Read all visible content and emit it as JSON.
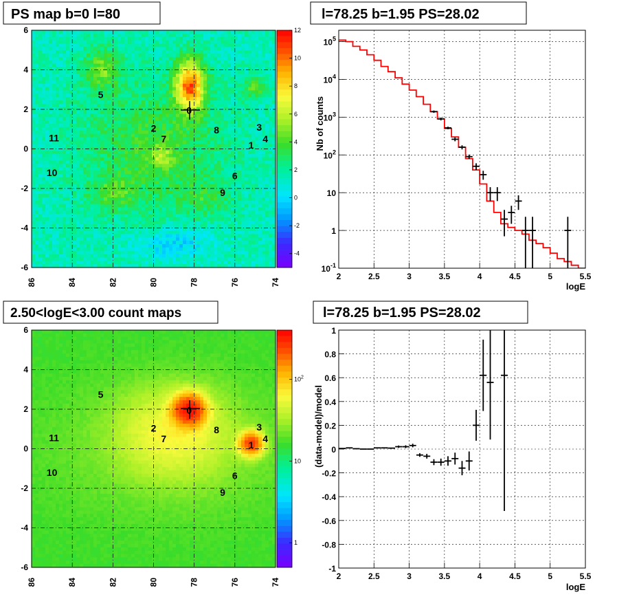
{
  "chart_data": [
    {
      "type": "heatmap",
      "title": "PS map b=0 l=80",
      "x_ticks": [
        "86",
        "84",
        "82",
        "80",
        "78",
        "76",
        "74"
      ],
      "y_ticks": [
        "6",
        "4",
        "2",
        "0",
        "-2",
        "-4",
        "-6"
      ],
      "xlim": [
        86,
        74
      ],
      "ylim": [
        -6,
        6
      ],
      "colorbar_ticks": [
        "12",
        "10",
        "8",
        "6",
        "4",
        "2",
        "0",
        "-2",
        "-4"
      ],
      "colorbar_range": [
        -5,
        12
      ],
      "sources": [
        {
          "label": "0",
          "l": 78.25,
          "b": 1.95
        },
        {
          "label": "1",
          "l": 75.2,
          "b": 0.2
        },
        {
          "label": "2",
          "l": 80.0,
          "b": 1.05
        },
        {
          "label": "3",
          "l": 74.8,
          "b": 1.1
        },
        {
          "label": "4",
          "l": 74.5,
          "b": 0.5
        },
        {
          "label": "5",
          "l": 82.6,
          "b": 2.75
        },
        {
          "label": "6",
          "l": 76.0,
          "b": -1.35
        },
        {
          "label": "7",
          "l": 79.5,
          "b": 0.5
        },
        {
          "label": "8",
          "l": 76.9,
          "b": 0.95
        },
        {
          "label": "9",
          "l": 76.6,
          "b": -2.2
        },
        {
          "label": "10",
          "l": 85.0,
          "b": -1.2
        },
        {
          "label": "11",
          "l": 84.9,
          "b": 0.55
        }
      ]
    },
    {
      "type": "line",
      "title": "l=78.25 b=1.95 PS=28.02",
      "xlabel": "logE",
      "ylabel": "Nb of counts",
      "xlim": [
        2,
        5.5
      ],
      "ylim": [
        0.1,
        200000
      ],
      "log_y": true,
      "grid": true,
      "x_ticks": [
        "2",
        "2.5",
        "3",
        "3.5",
        "4",
        "4.5",
        "5",
        "5.5"
      ],
      "y_ticks": [
        "10^-1",
        "1",
        "10",
        "10^2",
        "10^3",
        "10^4",
        "10^5"
      ],
      "series": [
        {
          "color": "#ff0000",
          "bin_edges": [
            2.0,
            2.1,
            2.2,
            2.3,
            2.4,
            2.5,
            2.6,
            2.7,
            2.8,
            2.9,
            3.0,
            3.1,
            3.2,
            3.3,
            3.4,
            3.5,
            3.6,
            3.7,
            3.8,
            3.9,
            4.0,
            4.1,
            4.2,
            4.3,
            4.4,
            4.5,
            4.6,
            4.7,
            4.8,
            4.9,
            5.0,
            5.1,
            5.2,
            5.3,
            5.4,
            5.5
          ],
          "values": [
            110000,
            100000,
            75000,
            60000,
            45000,
            32000,
            22000,
            16000,
            11000,
            7500,
            5200,
            3500,
            2200,
            1400,
            900,
            500,
            300,
            160,
            80,
            40,
            17,
            6,
            3,
            1.5,
            1.2,
            1,
            0.8,
            0.55,
            0.45,
            0.35,
            0.25,
            0.18,
            0.15,
            0.12,
            0.1
          ]
        },
        {
          "color": "#000000",
          "x": [
            3.35,
            3.45,
            3.55,
            3.65,
            3.75,
            3.85,
            3.95,
            4.05,
            4.15,
            4.25,
            4.35,
            4.45,
            4.55,
            4.65,
            4.75,
            5.25
          ],
          "y": [
            1400,
            900,
            520,
            260,
            160,
            90,
            50,
            30,
            10,
            10,
            2,
            3,
            6,
            1,
            1,
            1
          ],
          "y_low": [
            1300,
            820,
            480,
            230,
            140,
            78,
            40,
            22,
            6,
            6,
            0.7,
            1.5,
            3.5,
            0.1,
            0.1,
            0.1
          ],
          "y_high": [
            1500,
            980,
            560,
            290,
            180,
            102,
            60,
            38,
            14,
            14,
            3.5,
            4.5,
            8.5,
            2.3,
            2.3,
            2.3
          ]
        }
      ]
    },
    {
      "type": "heatmap",
      "title": "2.50<logE<3.00 count maps",
      "x_ticks": [
        "86",
        "84",
        "82",
        "80",
        "78",
        "76",
        "74"
      ],
      "y_ticks": [
        "6",
        "4",
        "2",
        "0",
        "-2",
        "-4",
        "-6"
      ],
      "xlim": [
        86,
        74
      ],
      "ylim": [
        -6,
        6
      ],
      "log_color": true,
      "colorbar_ticks": [
        "10^2",
        "10",
        "1"
      ],
      "colorbar_range": [
        0.5,
        400
      ],
      "sources": [
        {
          "label": "0",
          "l": 78.25,
          "b": 1.95
        },
        {
          "label": "1",
          "l": 75.2,
          "b": 0.2
        },
        {
          "label": "2",
          "l": 80.0,
          "b": 1.05
        },
        {
          "label": "3",
          "l": 74.8,
          "b": 1.1
        },
        {
          "label": "4",
          "l": 74.5,
          "b": 0.5
        },
        {
          "label": "5",
          "l": 82.6,
          "b": 2.75
        },
        {
          "label": "6",
          "l": 76.0,
          "b": -1.35
        },
        {
          "label": "7",
          "l": 79.5,
          "b": 0.5
        },
        {
          "label": "8",
          "l": 76.9,
          "b": 0.95
        },
        {
          "label": "9",
          "l": 76.6,
          "b": -2.2
        },
        {
          "label": "10",
          "l": 85.0,
          "b": -1.2
        },
        {
          "label": "11",
          "l": 84.9,
          "b": 0.55
        }
      ]
    },
    {
      "type": "scatter",
      "title": "l=78.25 b=1.95 PS=28.02",
      "xlabel": "logE",
      "ylabel": "(data-model)/model",
      "xlim": [
        2,
        5.5
      ],
      "ylim": [
        -1,
        1
      ],
      "grid": true,
      "x_ticks": [
        "2",
        "2.5",
        "3",
        "3.5",
        "4",
        "4.5",
        "5",
        "5.5"
      ],
      "y_ticks": [
        "1",
        "0.8",
        "0.6",
        "0.4",
        "0.2",
        "0",
        "-0.2",
        "-0.4",
        "-0.6",
        "-0.8",
        "-1"
      ],
      "series": [
        {
          "color": "#000000",
          "x": [
            2.05,
            2.15,
            2.25,
            2.35,
            2.45,
            2.55,
            2.65,
            2.75,
            2.85,
            2.95,
            3.05,
            3.15,
            3.25,
            3.35,
            3.45,
            3.55,
            3.65,
            3.75,
            3.85,
            3.95,
            4.05,
            4.15,
            4.35
          ],
          "y": [
            0.005,
            0.01,
            0.003,
            0.0,
            0.0,
            0.01,
            0.01,
            0.008,
            0.02,
            0.02,
            0.03,
            -0.05,
            -0.06,
            -0.11,
            -0.11,
            -0.1,
            -0.08,
            -0.16,
            -0.1,
            0.2,
            0.62,
            0.56,
            0.62
          ],
          "y_err": [
            0.003,
            0.004,
            0.004,
            0.005,
            0.005,
            0.006,
            0.007,
            0.008,
            0.01,
            0.012,
            0.015,
            0.015,
            0.02,
            0.025,
            0.03,
            0.04,
            0.05,
            0.06,
            0.08,
            0.13,
            0.3,
            0.48,
            1.14
          ]
        }
      ]
    }
  ]
}
